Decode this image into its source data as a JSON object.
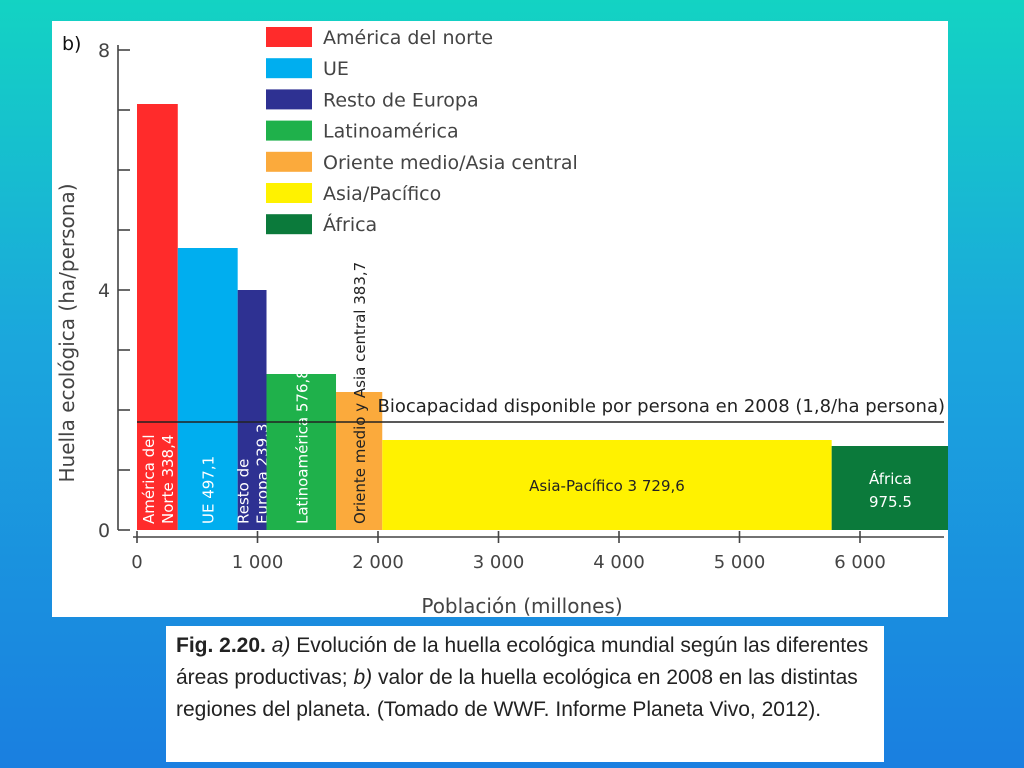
{
  "panel_label": "b)",
  "caption": {
    "fig_label": "Fig. 2.20.",
    "part_a_letter": "a)",
    "part_a_text": " Evolución de la huella ecológica mundial según las diferentes áreas productivas; ",
    "part_b_letter": "b)",
    "part_b_text": " valor de la huella ecológica en 2008 en las distintas regiones del planeta. (Tomado de WWF. Informe Planeta Vivo, 2012)."
  },
  "chart_data": {
    "type": "bar",
    "title": "",
    "xlabel": "Población (millones)",
    "ylabel": "Huella ecológica (ha/persona)",
    "xlim": [
      0,
      6700
    ],
    "ylim": [
      0,
      8
    ],
    "x_ticks": [
      0,
      1000,
      2000,
      3000,
      4000,
      5000,
      6000
    ],
    "x_tick_labels": [
      "0",
      "1 000",
      "2 000",
      "3 000",
      "4 000",
      "5 000",
      "6 000"
    ],
    "y_ticks": [
      0,
      1,
      2,
      3,
      4,
      5,
      6,
      7,
      8
    ],
    "y_tick_labels": [
      "0",
      "",
      "",
      "",
      "4",
      "",
      "",
      "",
      "8"
    ],
    "legend_position": "top-center",
    "reference_line": {
      "value": 1.8,
      "label": "Biocapacidad disponible por persona en 2008 (1,8/ha persona)"
    },
    "series": [
      {
        "name": "América del norte",
        "bar_label": "América del Norte 338,4",
        "population": 338.4,
        "value": 7.1,
        "color": "#ff2b2b",
        "label_orientation": "vertical"
      },
      {
        "name": "UE",
        "bar_label": "UE 497,1",
        "population": 497.1,
        "value": 4.7,
        "color": "#00aeef",
        "label_orientation": "vertical"
      },
      {
        "name": "Resto de Europa",
        "bar_label": "Resto de Europa 239,3",
        "population": 239.3,
        "value": 4.0,
        "color": "#2e3192",
        "label_orientation": "vertical"
      },
      {
        "name": "Latinoamérica",
        "bar_label": "Latinoamérica 576,8",
        "population": 576.8,
        "value": 2.6,
        "color": "#1fb14b",
        "label_orientation": "vertical"
      },
      {
        "name": "Oriente medio/Asia central",
        "bar_label": "Oriente medio y Asia central 383,7",
        "population": 383.7,
        "value": 2.3,
        "color": "#fbaa3c",
        "label_orientation": "vertical"
      },
      {
        "name": "Asia/Pacífico",
        "bar_label": "Asia-Pacífico 3 729,6",
        "population": 3729.6,
        "value": 1.5,
        "color": "#fff200",
        "label_orientation": "horizontal"
      },
      {
        "name": "África",
        "bar_label": "África 975.5",
        "population": 975.5,
        "value": 1.4,
        "color": "#0b7a3b",
        "label_orientation": "horizontal"
      }
    ]
  }
}
